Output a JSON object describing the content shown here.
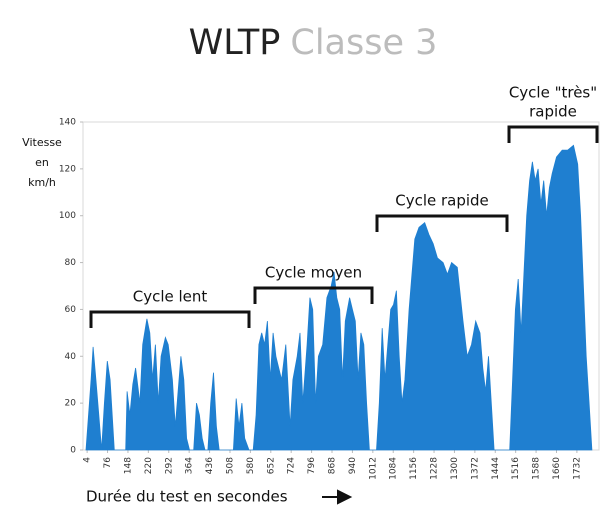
{
  "chart_data": {
    "type": "area",
    "title": "WLTP",
    "subtitle": "Classe 3",
    "y_label": [
      "Vitesse",
      "en",
      "km/h"
    ],
    "x_label": "Durée du test en secondes",
    "annotations": [
      [
        "Cycle lent"
      ],
      [
        "Cycle moyen"
      ],
      [
        "Cycle rapide"
      ],
      [
        "Cycle \"très\"",
        "rapide"
      ]
    ],
    "color": "#1f7fd0",
    "xlim": [
      0,
      1810
    ],
    "ylim": [
      0,
      140
    ],
    "xticks": [
      4,
      76,
      148,
      220,
      292,
      364,
      436,
      508,
      580,
      652,
      724,
      796,
      868,
      940,
      1012,
      1084,
      1156,
      1228,
      1300,
      1372,
      1444,
      1516,
      1588,
      1660,
      1732
    ],
    "yticks": [
      0,
      20,
      40,
      60,
      80,
      100,
      120,
      140
    ],
    "grid": false,
    "x": [
      0,
      12,
      18,
      25,
      35,
      45,
      55,
      65,
      75,
      85,
      95,
      100,
      140,
      145,
      155,
      165,
      175,
      190,
      200,
      215,
      225,
      235,
      245,
      255,
      265,
      280,
      290,
      305,
      315,
      325,
      335,
      345,
      355,
      365,
      380,
      390,
      400,
      410,
      420,
      430,
      440,
      450,
      460,
      470,
      520,
      530,
      540,
      550,
      560,
      575,
      590,
      600,
      610,
      620,
      630,
      640,
      650,
      660,
      670,
      690,
      705,
      720,
      730,
      745,
      755,
      765,
      780,
      790,
      800,
      810,
      820,
      835,
      850,
      865,
      875,
      885,
      895,
      905,
      915,
      930,
      940,
      950,
      960,
      970,
      980,
      990,
      1000,
      1025,
      1035,
      1045,
      1055,
      1065,
      1075,
      1085,
      1095,
      1105,
      1115,
      1125,
      1140,
      1160,
      1175,
      1195,
      1210,
      1225,
      1240,
      1260,
      1275,
      1290,
      1310,
      1330,
      1345,
      1360,
      1375,
      1390,
      1400,
      1410,
      1420,
      1430,
      1440,
      1480,
      1495,
      1505,
      1515,
      1525,
      1535,
      1545,
      1555,
      1565,
      1575,
      1585,
      1595,
      1605,
      1615,
      1625,
      1635,
      1645,
      1660,
      1680,
      1700,
      1720,
      1735,
      1745,
      1755,
      1765,
      1775,
      1785
    ],
    "values": [
      0,
      20,
      30,
      44,
      30,
      15,
      0,
      20,
      38,
      30,
      10,
      0,
      0,
      25,
      15,
      28,
      35,
      20,
      45,
      56,
      50,
      30,
      45,
      20,
      40,
      48,
      45,
      30,
      10,
      25,
      40,
      30,
      5,
      0,
      0,
      20,
      15,
      5,
      0,
      0,
      20,
      33,
      10,
      0,
      0,
      22,
      10,
      20,
      5,
      0,
      0,
      15,
      45,
      50,
      45,
      55,
      30,
      50,
      40,
      30,
      45,
      10,
      30,
      40,
      50,
      20,
      45,
      65,
      60,
      20,
      40,
      45,
      65,
      70,
      76,
      65,
      60,
      30,
      55,
      65,
      60,
      55,
      30,
      50,
      45,
      20,
      0,
      0,
      20,
      52,
      30,
      45,
      60,
      62,
      68,
      40,
      20,
      30,
      60,
      90,
      95,
      97,
      92,
      88,
      82,
      80,
      75,
      80,
      78,
      55,
      40,
      45,
      55,
      50,
      35,
      25,
      40,
      20,
      0,
      0,
      0,
      30,
      60,
      73,
      50,
      75,
      100,
      115,
      123,
      115,
      120,
      105,
      115,
      100,
      112,
      118,
      125,
      128,
      128,
      130,
      122,
      100,
      70,
      40,
      20,
      0
    ]
  }
}
